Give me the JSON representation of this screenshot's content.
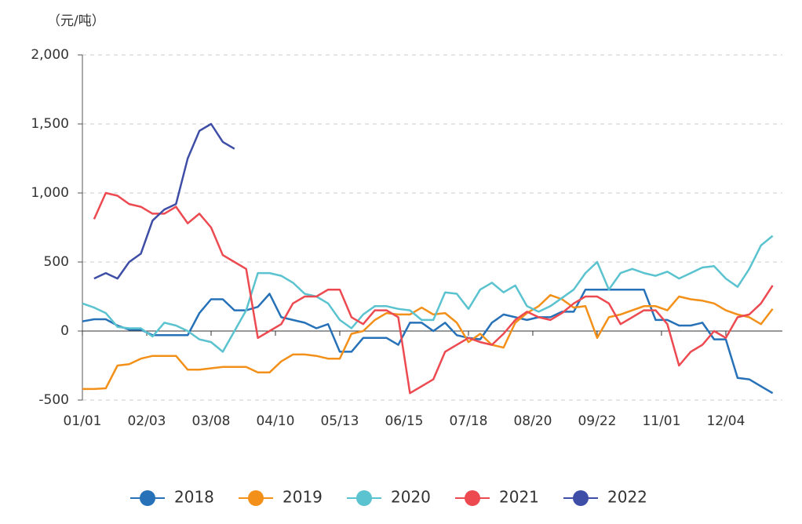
{
  "chart_data": {
    "type": "line",
    "y_label": "（元/吨）",
    "x": [
      0,
      6,
      12,
      18,
      24,
      30,
      36,
      42,
      48,
      54,
      60,
      66,
      72,
      78,
      84,
      90,
      96,
      102,
      108,
      114,
      120,
      126,
      132,
      138,
      144,
      150,
      156,
      162,
      168,
      174,
      180,
      186,
      192,
      198,
      204,
      210,
      216,
      222,
      228,
      234,
      240,
      246,
      252,
      258,
      264,
      270,
      276,
      282,
      288,
      294,
      300,
      306,
      312,
      318,
      324,
      330,
      336,
      342,
      348,
      354
    ],
    "xlim": [
      0,
      359
    ],
    "xticks": [
      {
        "value": 0,
        "label": "01/01"
      },
      {
        "value": 33,
        "label": "02/03"
      },
      {
        "value": 66,
        "label": "03/08"
      },
      {
        "value": 99,
        "label": "04/10"
      },
      {
        "value": 132,
        "label": "05/13"
      },
      {
        "value": 165,
        "label": "06/15"
      },
      {
        "value": 198,
        "label": "07/18"
      },
      {
        "value": 231,
        "label": "08/20"
      },
      {
        "value": 264,
        "label": "09/22"
      },
      {
        "value": 297,
        "label": "11/01"
      },
      {
        "value": 330,
        "label": "12/04"
      }
    ],
    "ylim": [
      -500,
      2000
    ],
    "yticks": [
      {
        "value": -500,
        "label": "-500"
      },
      0,
      500,
      {
        "value": 1000,
        "label": "1,000"
      },
      {
        "value": 1500,
        "label": "1,500"
      },
      {
        "value": 2000,
        "label": "2,000"
      }
    ],
    "grid": true,
    "series": [
      {
        "name": "2018",
        "color": "#2671b8",
        "values": [
          70,
          85,
          85,
          40,
          10,
          10,
          -30,
          -30,
          -30,
          -30,
          130,
          230,
          230,
          150,
          150,
          175,
          270,
          100,
          80,
          60,
          20,
          50,
          -150,
          -150,
          -50,
          -50,
          -50,
          -100,
          60,
          60,
          0,
          60,
          -30,
          -50,
          -60,
          60,
          120,
          100,
          80,
          100,
          100,
          140,
          140,
          300,
          300,
          300,
          300,
          300,
          300,
          80,
          80,
          40,
          40,
          60,
          -60,
          -60,
          -340,
          -350,
          -400,
          -450
        ]
      },
      {
        "name": "2019",
        "color": "#f39019",
        "values": [
          -420,
          -420,
          -415,
          -250,
          -240,
          -200,
          -180,
          -180,
          -180,
          -280,
          -280,
          -270,
          -260,
          -260,
          -260,
          -300,
          -300,
          -220,
          -170,
          -170,
          -180,
          -200,
          -200,
          -20,
          0,
          80,
          130,
          120,
          120,
          170,
          120,
          130,
          60,
          -80,
          -20,
          -100,
          -120,
          60,
          130,
          180,
          260,
          230,
          170,
          180,
          -50,
          100,
          120,
          150,
          180,
          180,
          150,
          250,
          230,
          220,
          200,
          150,
          120,
          100,
          50,
          160
        ]
      },
      {
        "name": "2020",
        "color": "#5bc3cf",
        "values": [
          200,
          170,
          130,
          30,
          20,
          20,
          -40,
          60,
          40,
          0,
          -60,
          -80,
          -150,
          0,
          150,
          420,
          420,
          400,
          350,
          270,
          250,
          200,
          80,
          20,
          120,
          180,
          180,
          160,
          150,
          80,
          80,
          280,
          270,
          160,
          300,
          350,
          280,
          330,
          180,
          140,
          180,
          240,
          300,
          420,
          500,
          300,
          420,
          450,
          420,
          400,
          430,
          380,
          420,
          460,
          470,
          380,
          320,
          450,
          620,
          690
        ]
      },
      {
        "name": "2021",
        "color": "#ec4a50",
        "values": [
          null,
          810,
          1000,
          980,
          920,
          900,
          850,
          850,
          900,
          780,
          850,
          750,
          550,
          500,
          450,
          -50,
          0,
          50,
          200,
          250,
          250,
          300,
          300,
          100,
          50,
          150,
          150,
          100,
          -450,
          -400,
          -350,
          -150,
          -100,
          -50,
          -80,
          -100,
          -20,
          80,
          140,
          100,
          80,
          130,
          200,
          250,
          250,
          200,
          50,
          100,
          150,
          150,
          50,
          -250,
          -150,
          -100,
          0,
          -50,
          100,
          120,
          200,
          330
        ]
      },
      {
        "name": "2022",
        "color": "#3e4ea6",
        "values": [
          null,
          380,
          420,
          380,
          500,
          560,
          800,
          880,
          920,
          1250,
          1450,
          1500,
          1370,
          1320,
          null,
          null,
          null,
          null,
          null,
          null,
          null,
          null,
          null,
          null,
          null,
          null,
          null,
          null,
          null,
          null,
          null,
          null,
          null,
          null,
          null,
          null,
          null,
          null,
          null,
          null,
          null,
          null,
          null,
          null,
          null,
          null,
          null,
          null,
          null,
          null,
          null,
          null,
          null,
          null,
          null,
          null,
          null,
          null,
          null,
          null
        ]
      }
    ]
  }
}
